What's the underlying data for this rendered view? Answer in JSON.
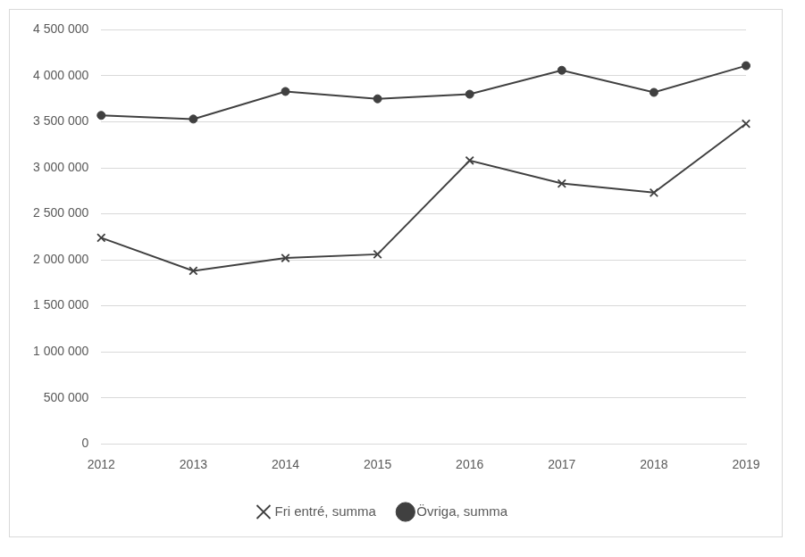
{
  "chart_data": {
    "type": "line",
    "categories": [
      "2012",
      "2013",
      "2014",
      "2015",
      "2016",
      "2017",
      "2018",
      "2019"
    ],
    "series": [
      {
        "name": "Fri entré, summa",
        "color": "#404040",
        "marker": "x",
        "values": [
          2240000,
          1880000,
          2020000,
          2060000,
          3080000,
          2830000,
          2730000,
          3480000
        ]
      },
      {
        "name": "Övriga, summa",
        "color": "#404040",
        "marker": "circle",
        "values": [
          3570000,
          3530000,
          3830000,
          3750000,
          3800000,
          4060000,
          3820000,
          4110000
        ]
      }
    ],
    "ylim": [
      0,
      4500000
    ],
    "yticks": [
      {
        "value": 0,
        "label": "0"
      },
      {
        "value": 500000,
        "label": "500 000"
      },
      {
        "value": 1000000,
        "label": "1 000 000"
      },
      {
        "value": 1500000,
        "label": "1 500 000"
      },
      {
        "value": 2000000,
        "label": "2 000 000"
      },
      {
        "value": 2500000,
        "label": "2 500 000"
      },
      {
        "value": 3000000,
        "label": "3 000 000"
      },
      {
        "value": 3500000,
        "label": "3 500 000"
      },
      {
        "value": 4000000,
        "label": "4 000 000"
      },
      {
        "value": 4500000,
        "label": "4 500 000"
      }
    ],
    "grid": true,
    "legend": "bottom"
  }
}
